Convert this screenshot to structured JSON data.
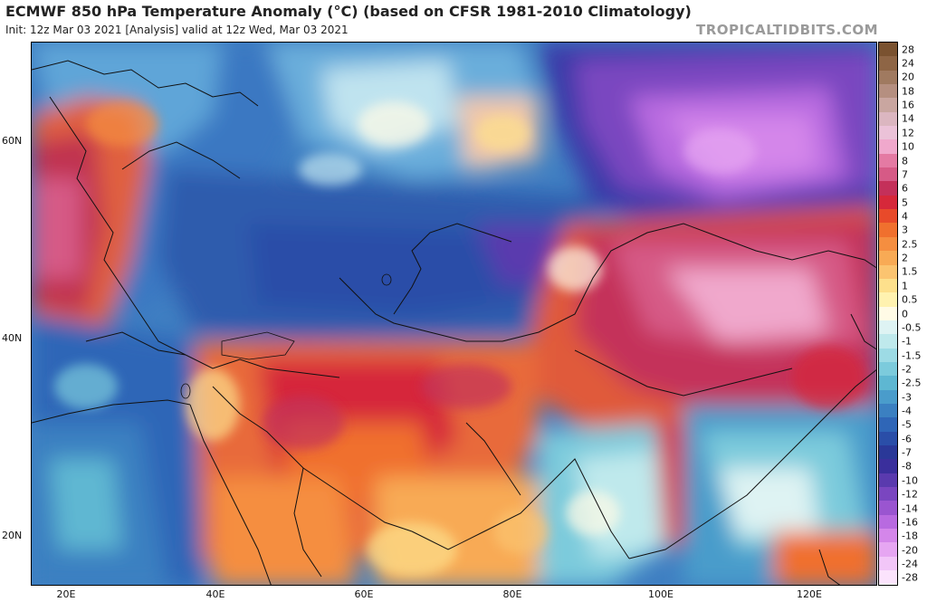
{
  "header": {
    "title": "ECMWF 850 hPa Temperature Anomaly (°C) (based on CFSR 1981-2010 Climatology)",
    "subtitle": "Init: 12z Mar 03 2021   [Analysis]   valid at 12z Wed, Mar 03 2021",
    "brand": "TROPICALTIDBITS.COM"
  },
  "map": {
    "latitude_labels": [
      "60N",
      "40N",
      "20N"
    ],
    "longitude_labels": [
      "20E",
      "40E",
      "60E",
      "80E",
      "100E",
      "120E"
    ]
  },
  "colorbar": {
    "labels": [
      "28",
      "24",
      "20",
      "18",
      "16",
      "14",
      "12",
      "10",
      "8",
      "7",
      "6",
      "5",
      "4",
      "3",
      "2.5",
      "2",
      "1.5",
      "1",
      "0.5",
      "0",
      "-0.5",
      "-1",
      "-1.5",
      "-2",
      "-2.5",
      "-3",
      "-4",
      "-5",
      "-6",
      "-7",
      "-8",
      "-10",
      "-12",
      "-14",
      "-16",
      "-18",
      "-20",
      "-24",
      "-28"
    ],
    "colors": [
      "#7a5230",
      "#8e6545",
      "#a07a60",
      "#b58f80",
      "#c9a6a0",
      "#dbb6c0",
      "#ebc2d8",
      "#f0a8cc",
      "#e47aa3",
      "#d65a86",
      "#c4305a",
      "#d6283a",
      "#e84a2a",
      "#f0702e",
      "#f58e40",
      "#f8aa55",
      "#fbc470",
      "#fde08c",
      "#fff2b0",
      "#fffbe6",
      "#def3f3",
      "#bfe9ec",
      "#9ddbe5",
      "#7ccbdc",
      "#5eb7d2",
      "#4a9ccb",
      "#3b80c1",
      "#2f66b7",
      "#2a4ea8",
      "#2a3898",
      "#3a2f9c",
      "#5a3aae",
      "#7a46c0",
      "#9a55d0",
      "#b86ae0",
      "#d486ea",
      "#e6a6f2",
      "#f2c6f8",
      "#fbe3fc"
    ]
  }
}
